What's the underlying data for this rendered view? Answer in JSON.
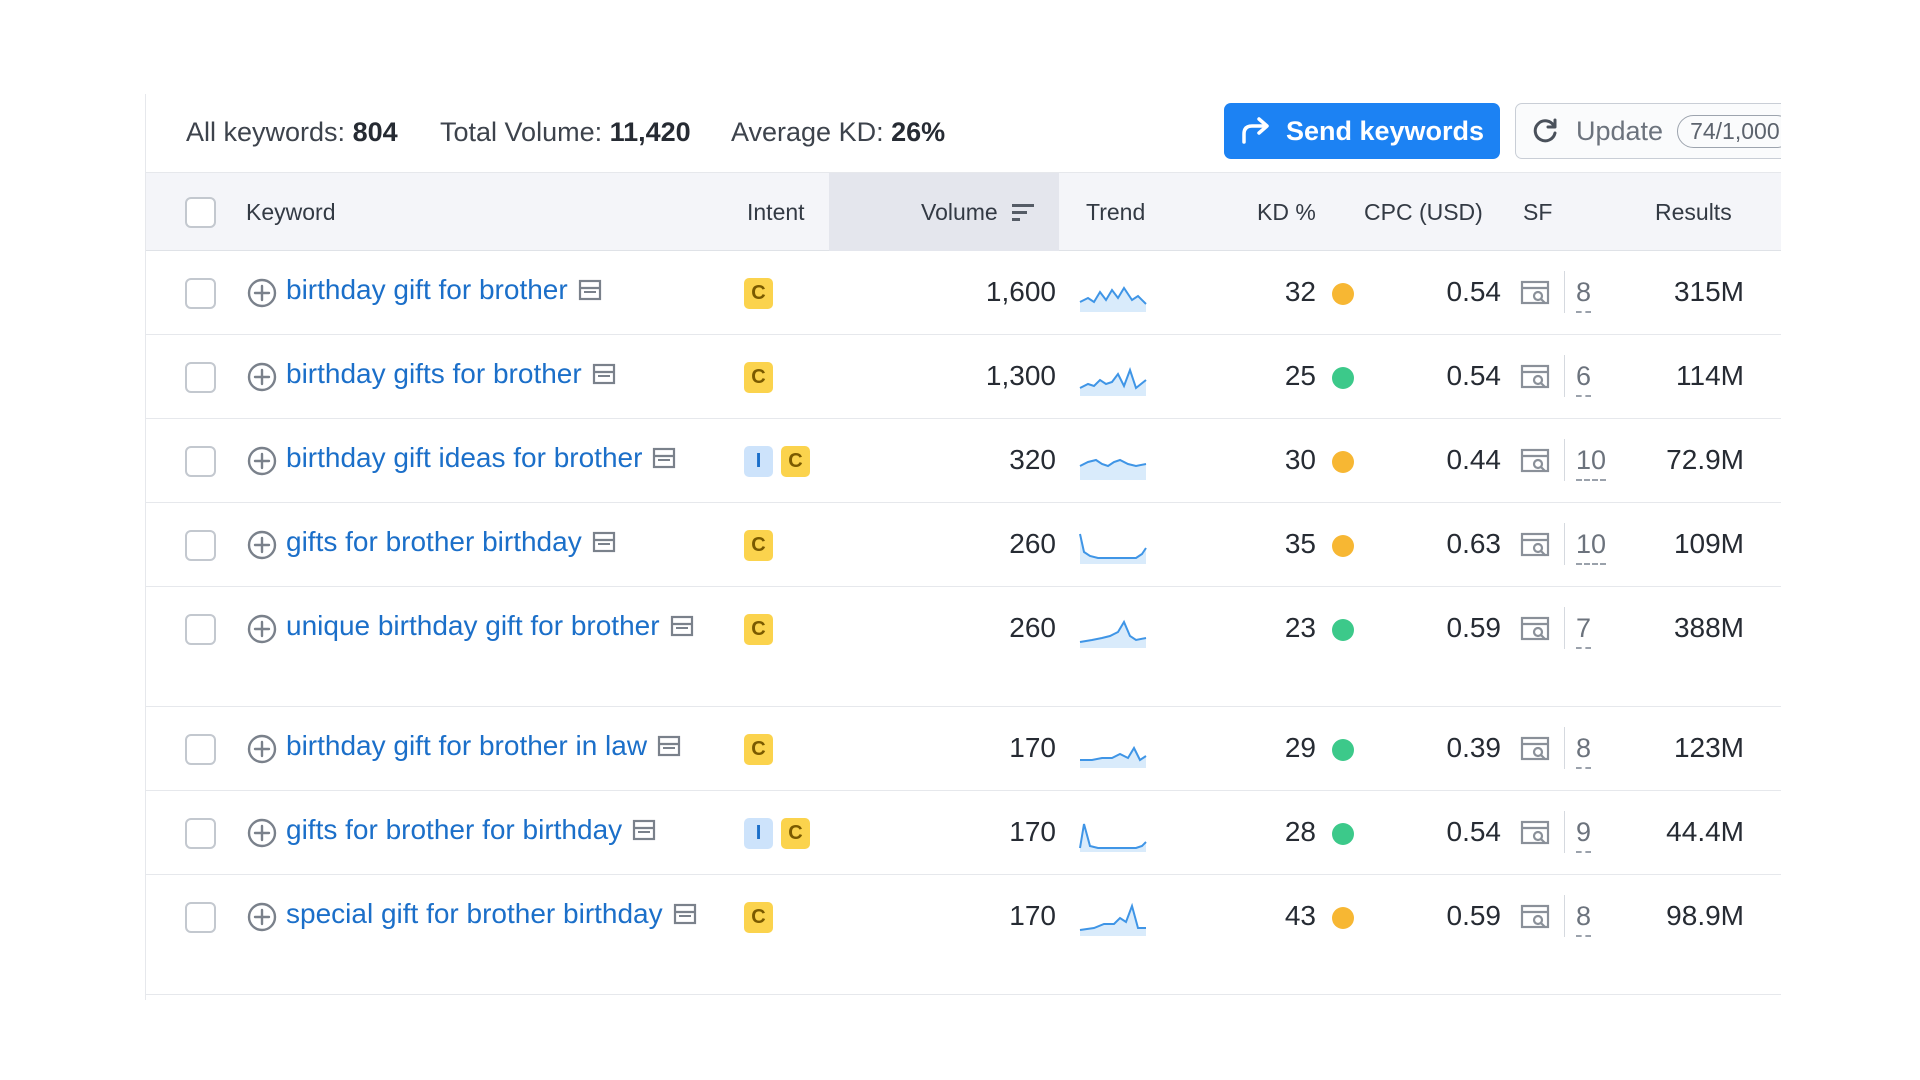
{
  "summary": {
    "all_keywords_label": "All keywords:",
    "all_keywords_value": "804",
    "total_volume_label": "Total Volume:",
    "total_volume_value": "11,420",
    "average_kd_label": "Average KD:",
    "average_kd_value": "26%",
    "send_button_label": "Send keywords",
    "update_button_label": "Update",
    "update_count": "74/1,000"
  },
  "columns": {
    "keyword": "Keyword",
    "intent": "Intent",
    "volume": "Volume",
    "trend": "Trend",
    "kd": "KD %",
    "cpc": "CPC (USD)",
    "sf": "SF",
    "results": "Results"
  },
  "colors": {
    "accent": "#1c82f3",
    "link": "#1b6fc9",
    "kd_orange": "#f7b733",
    "kd_green": "#3cc98a"
  },
  "rows": [
    {
      "keyword": "birthday gift for brother",
      "intent": [
        "C"
      ],
      "volume": "1,600",
      "trend": "wave",
      "kd": "32",
      "kd_level": "orange",
      "cpc": "0.54",
      "sf": "8",
      "results": "315M"
    },
    {
      "keyword": "birthday gifts for brother",
      "intent": [
        "C"
      ],
      "volume": "1,300",
      "trend": "wave2",
      "kd": "25",
      "kd_level": "green",
      "cpc": "0.54",
      "sf": "6",
      "results": "114M"
    },
    {
      "keyword": "birthday gift ideas for brother",
      "intent": [
        "I",
        "C"
      ],
      "volume": "320",
      "trend": "soft",
      "kd": "30",
      "kd_level": "orange",
      "cpc": "0.44",
      "sf": "10",
      "results": "72.9M"
    },
    {
      "keyword": "gifts for brother birthday",
      "intent": [
        "C"
      ],
      "volume": "260",
      "trend": "drop",
      "kd": "35",
      "kd_level": "orange",
      "cpc": "0.63",
      "sf": "10",
      "results": "109M"
    },
    {
      "keyword": "unique birthday gift for brother",
      "intent": [
        "C"
      ],
      "volume": "260",
      "trend": "spike",
      "kd": "23",
      "kd_level": "green",
      "cpc": "0.59",
      "sf": "7",
      "results": "388M"
    },
    {
      "keyword": "birthday gift for brother in law",
      "intent": [
        "C"
      ],
      "volume": "170",
      "trend": "late",
      "kd": "29",
      "kd_level": "green",
      "cpc": "0.39",
      "sf": "8",
      "results": "123M"
    },
    {
      "keyword": "gifts for brother for birthday",
      "intent": [
        "I",
        "C"
      ],
      "volume": "170",
      "trend": "drop2",
      "kd": "28",
      "kd_level": "green",
      "cpc": "0.54",
      "sf": "9",
      "results": "44.4M"
    },
    {
      "keyword": "special gift for brother birthday",
      "intent": [
        "C"
      ],
      "volume": "170",
      "trend": "spike2",
      "kd": "43",
      "kd_level": "orange",
      "cpc": "0.59",
      "sf": "8",
      "results": "98.9M"
    }
  ]
}
